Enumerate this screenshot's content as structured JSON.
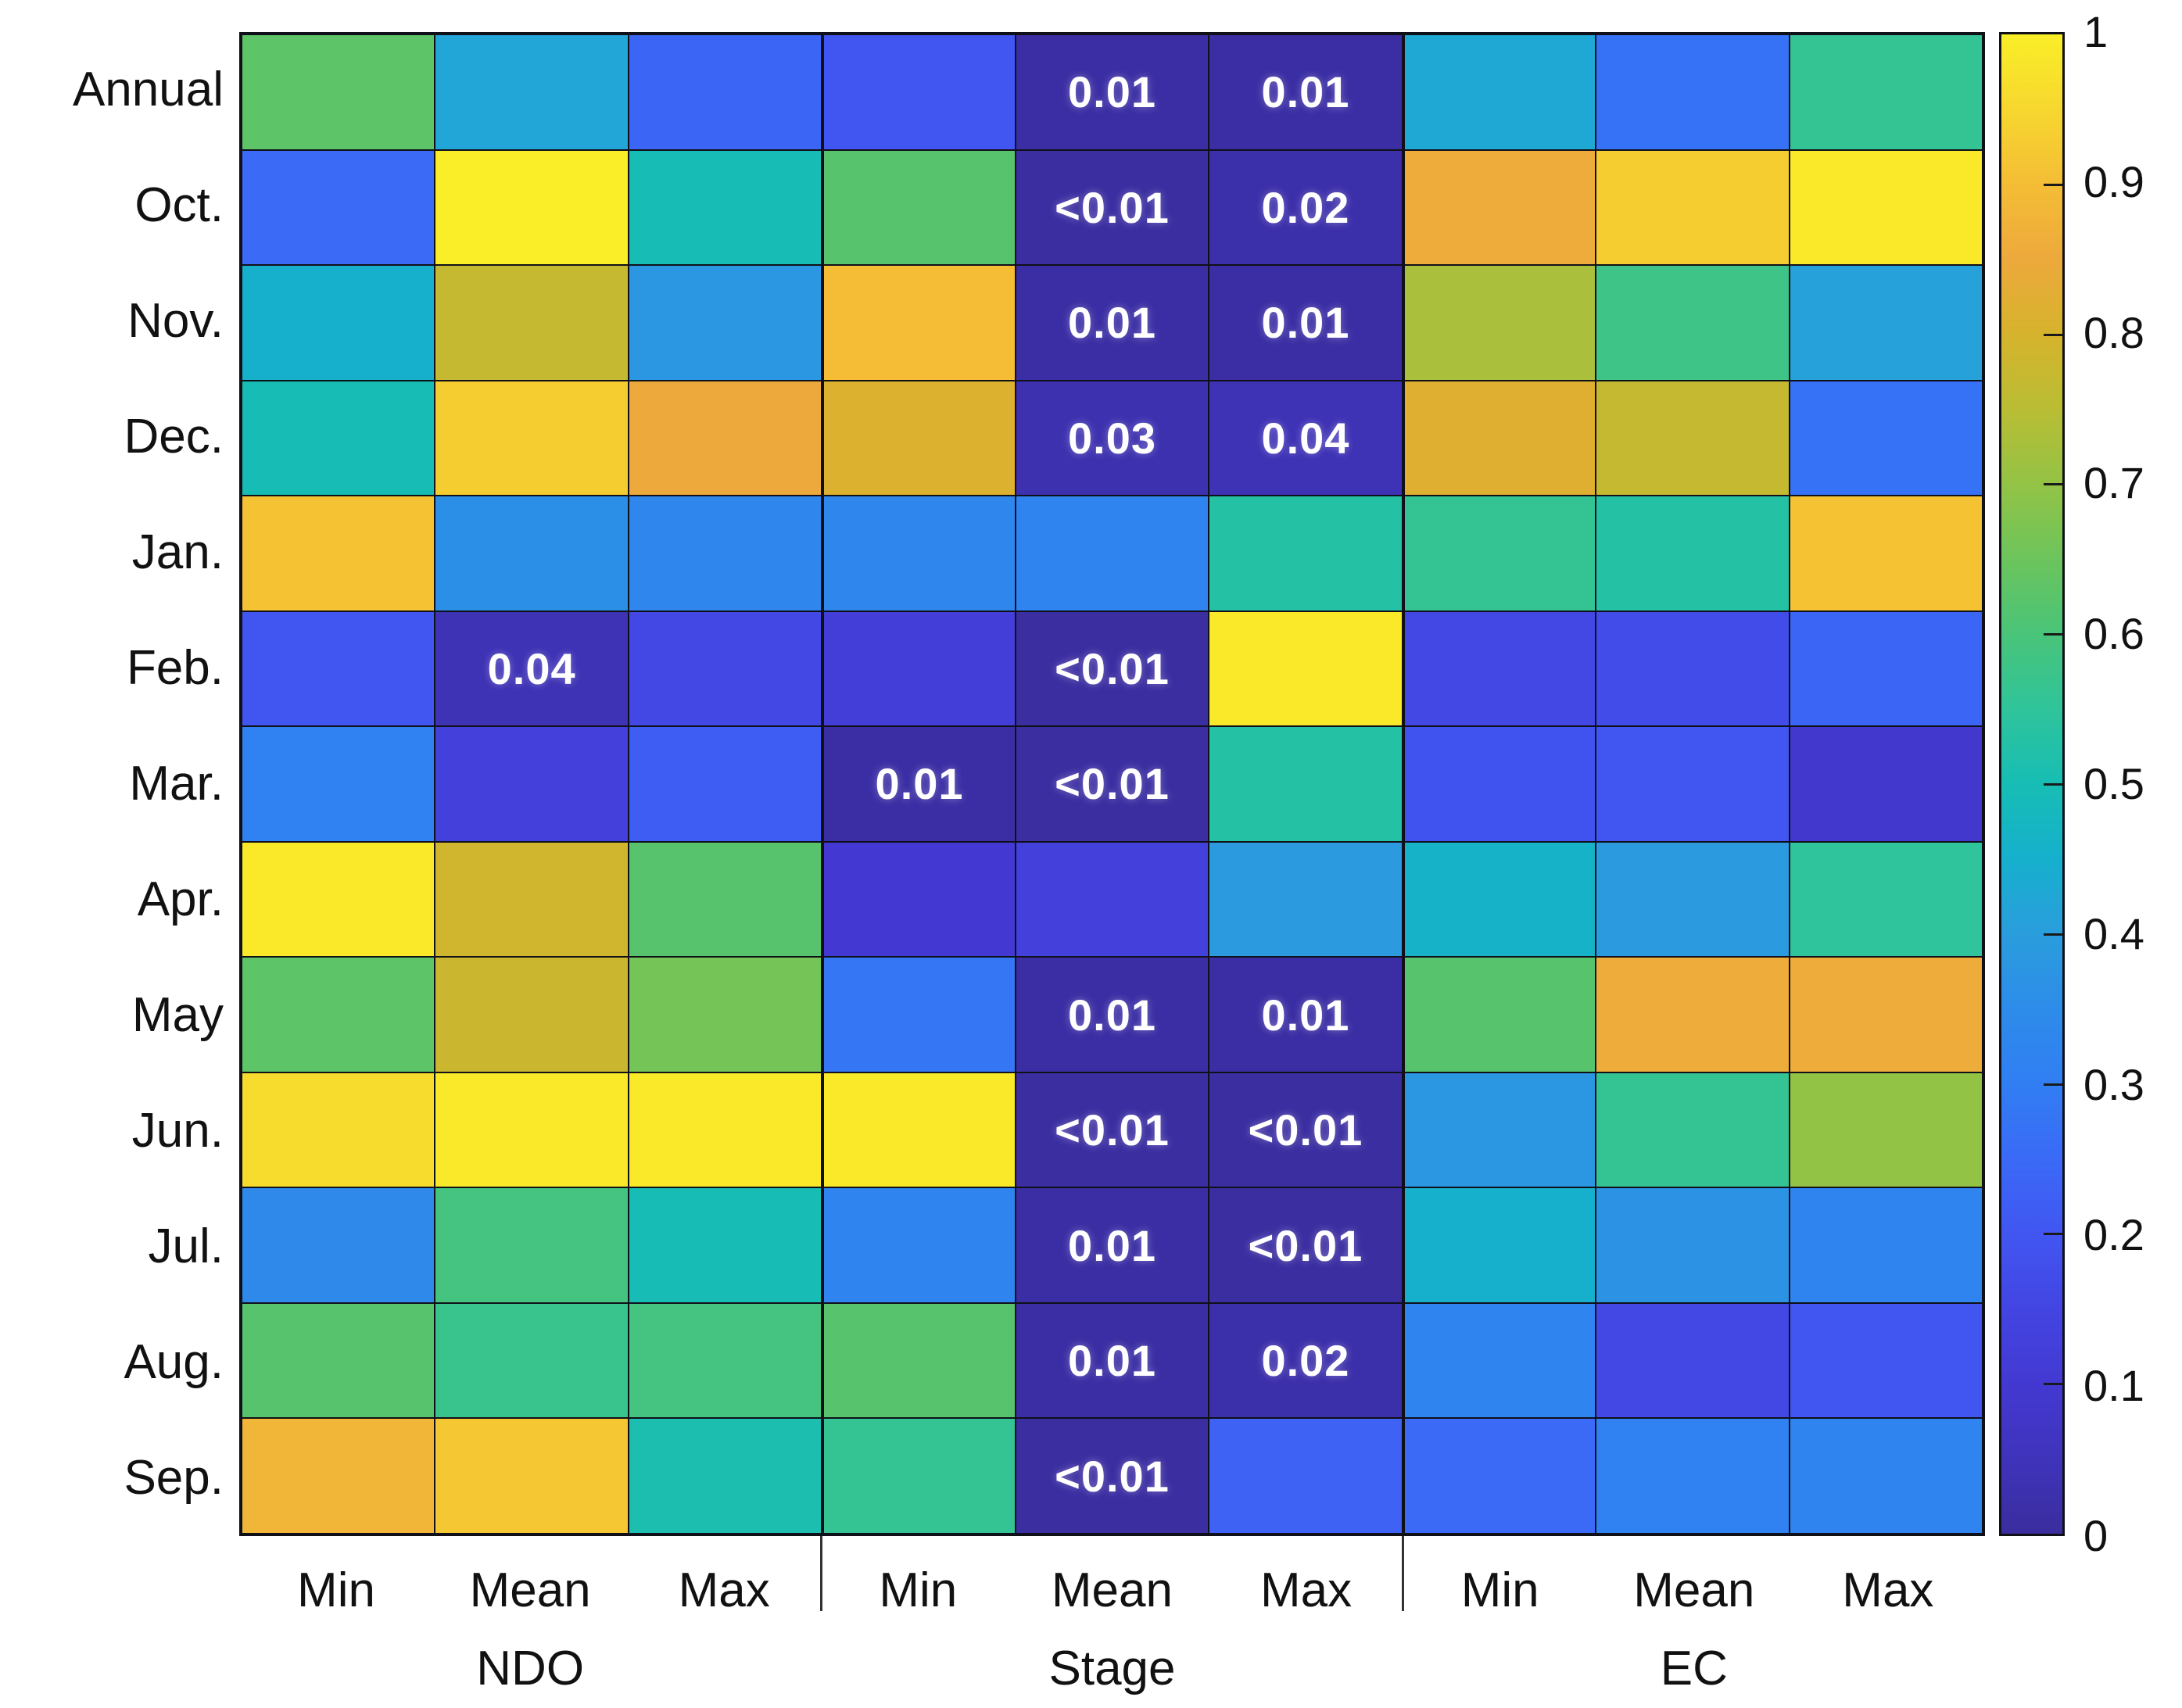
{
  "chart_data": {
    "type": "heatmap",
    "title": "",
    "rows": [
      "Annual",
      "Oct.",
      "Nov.",
      "Dec.",
      "Jan.",
      "Feb.",
      "Mar.",
      "Apr.",
      "May",
      "Jun.",
      "Jul.",
      "Aug.",
      "Sep."
    ],
    "column_groups": [
      {
        "label": "NDO",
        "stats": [
          "Min",
          "Mean",
          "Max"
        ]
      },
      {
        "label": "Stage",
        "stats": [
          "Min",
          "Mean",
          "Max"
        ]
      },
      {
        "label": "EC",
        "stats": [
          "Min",
          "Mean",
          "Max"
        ]
      }
    ],
    "values": [
      [
        0.63,
        0.42,
        0.24,
        0.2,
        0.01,
        0.01,
        0.43,
        0.27,
        0.56
      ],
      [
        0.25,
        1.0,
        0.5,
        0.62,
        0.005,
        0.02,
        0.86,
        0.93,
        0.99
      ],
      [
        0.45,
        0.77,
        0.38,
        0.9,
        0.01,
        0.01,
        0.73,
        0.58,
        0.41
      ],
      [
        0.5,
        0.93,
        0.85,
        0.81,
        0.03,
        0.04,
        0.82,
        0.77,
        0.27
      ],
      [
        0.91,
        0.36,
        0.33,
        0.33,
        0.32,
        0.53,
        0.56,
        0.53,
        0.91
      ],
      [
        0.2,
        0.04,
        0.16,
        0.12,
        0.005,
        0.99,
        0.16,
        0.17,
        0.24
      ],
      [
        0.31,
        0.13,
        0.22,
        0.01,
        0.005,
        0.53,
        0.19,
        0.2,
        0.09
      ],
      [
        0.99,
        0.79,
        0.62,
        0.1,
        0.13,
        0.39,
        0.46,
        0.39,
        0.55
      ],
      [
        0.63,
        0.78,
        0.66,
        0.28,
        0.01,
        0.01,
        0.62,
        0.86,
        0.86
      ],
      [
        0.96,
        0.99,
        0.99,
        0.99,
        0.005,
        0.005,
        0.38,
        0.56,
        0.7
      ],
      [
        0.34,
        0.59,
        0.5,
        0.32,
        0.01,
        0.005,
        0.45,
        0.37,
        0.32
      ],
      [
        0.62,
        0.57,
        0.59,
        0.62,
        0.01,
        0.02,
        0.32,
        0.16,
        0.2
      ],
      [
        0.88,
        0.92,
        0.51,
        0.56,
        0.005,
        0.23,
        0.25,
        0.31,
        0.32
      ]
    ],
    "annotations": [
      [
        null,
        null,
        null,
        null,
        "0.01",
        "0.01",
        null,
        null,
        null
      ],
      [
        null,
        null,
        null,
        null,
        "<0.01",
        "0.02",
        null,
        null,
        null
      ],
      [
        null,
        null,
        null,
        null,
        "0.01",
        "0.01",
        null,
        null,
        null
      ],
      [
        null,
        null,
        null,
        null,
        "0.03",
        "0.04",
        null,
        null,
        null
      ],
      [
        null,
        null,
        null,
        null,
        null,
        null,
        null,
        null,
        null
      ],
      [
        null,
        "0.04",
        null,
        null,
        "<0.01",
        null,
        null,
        null,
        null
      ],
      [
        null,
        null,
        null,
        "0.01",
        "<0.01",
        null,
        null,
        null,
        null
      ],
      [
        null,
        null,
        null,
        null,
        null,
        null,
        null,
        null,
        null
      ],
      [
        null,
        null,
        null,
        null,
        "0.01",
        "0.01",
        null,
        null,
        null
      ],
      [
        null,
        null,
        null,
        null,
        "<0.01",
        "<0.01",
        null,
        null,
        null
      ],
      [
        null,
        null,
        null,
        null,
        "0.01",
        "<0.01",
        null,
        null,
        null
      ],
      [
        null,
        null,
        null,
        null,
        "0.01",
        "0.02",
        null,
        null,
        null
      ],
      [
        null,
        null,
        null,
        null,
        "<0.01",
        null,
        null,
        null,
        null
      ]
    ],
    "annotation_text_color": "#ffffff",
    "colorbar": {
      "min": 0,
      "max": 1,
      "tick_values": [
        1,
        0.9,
        0.8,
        0.7,
        0.6,
        0.5,
        0.4,
        0.3,
        0.2,
        0.1,
        0
      ],
      "tick_labels": [
        "1",
        "0.9",
        "0.8",
        "0.7",
        "0.6",
        "0.5",
        "0.4",
        "0.3",
        "0.2",
        "0.1",
        "0"
      ]
    },
    "colormap_anchors": [
      [
        0.0,
        "#3a2d9e"
      ],
      [
        0.05,
        "#3f33bb"
      ],
      [
        0.1,
        "#4339d2"
      ],
      [
        0.15,
        "#4345e2"
      ],
      [
        0.2,
        "#4156f1"
      ],
      [
        0.25,
        "#3a6af6"
      ],
      [
        0.3,
        "#317ef3"
      ],
      [
        0.35,
        "#2d8ce9"
      ],
      [
        0.4,
        "#2a9ddd"
      ],
      [
        0.45,
        "#16b0cd"
      ],
      [
        0.5,
        "#17bdb4"
      ],
      [
        0.55,
        "#2fc49b"
      ],
      [
        0.6,
        "#49c479"
      ],
      [
        0.65,
        "#6cc45c"
      ],
      [
        0.7,
        "#93c345"
      ],
      [
        0.75,
        "#b9bd34"
      ],
      [
        0.8,
        "#d6b32c"
      ],
      [
        0.85,
        "#eda93c"
      ],
      [
        0.9,
        "#f4bd35"
      ],
      [
        0.95,
        "#f7d72f"
      ],
      [
        1.0,
        "#f9ee27"
      ]
    ],
    "layout": {
      "grid_lines": "on",
      "legend_position": "right-colorbar"
    }
  }
}
